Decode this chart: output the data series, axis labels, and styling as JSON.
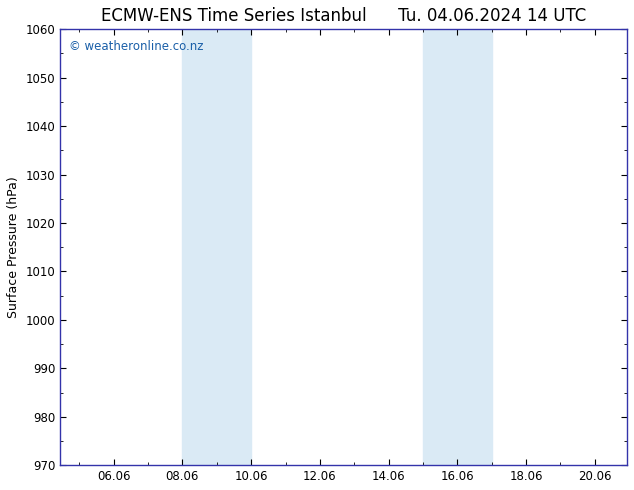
{
  "title_left": "ECMW-ENS Time Series Istanbul",
  "title_right": "Tu. 04.06.2024 14 UTC",
  "ylabel": "Surface Pressure (hPa)",
  "ylim": [
    970,
    1060
  ],
  "yticks": [
    970,
    980,
    990,
    1000,
    1010,
    1020,
    1030,
    1040,
    1050,
    1060
  ],
  "xlim_start": 4.5,
  "xlim_end": 21.0,
  "xtick_positions": [
    6.06,
    8.06,
    10.06,
    12.06,
    14.06,
    16.06,
    18.06,
    20.06
  ],
  "xtick_labels": [
    "06.06",
    "08.06",
    "10.06",
    "12.06",
    "14.06",
    "16.06",
    "18.06",
    "20.06"
  ],
  "shaded_bands": [
    {
      "x_start": 8.06,
      "x_end": 10.06
    },
    {
      "x_start": 15.06,
      "x_end": 17.06
    }
  ],
  "shaded_color": "#daeaf5",
  "background_color": "#ffffff",
  "plot_bg_color": "#ffffff",
  "watermark_text": "© weatheronline.co.nz",
  "watermark_color": "#1a5fa8",
  "title_fontsize": 12,
  "axis_label_fontsize": 9,
  "tick_fontsize": 8.5,
  "watermark_fontsize": 8.5,
  "border_color": "#3333aa",
  "tick_color": "#000000"
}
